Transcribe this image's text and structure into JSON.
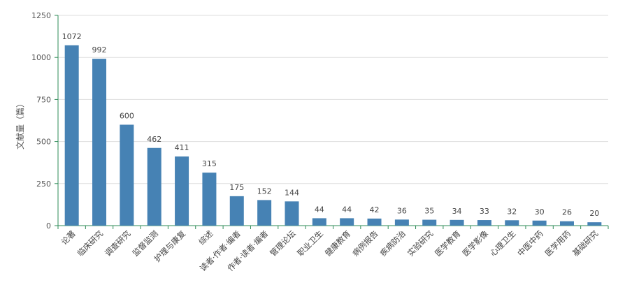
{
  "chart_data": {
    "type": "bar",
    "title": "",
    "xlabel": "",
    "ylabel": "文献量（篇）",
    "ylim": [
      0,
      1250
    ],
    "yticks": [
      0,
      250,
      500,
      750,
      1000,
      1250
    ],
    "grid": true,
    "legend": "none",
    "bar_color": "#4682b4",
    "categories": [
      "论著",
      "临床研究",
      "调查研究",
      "监督监测",
      "护理与康复",
      "综述",
      "读者·作者·编者",
      "作者·读者·编者",
      "管理论坛",
      "职业卫生",
      "健康教育",
      "病例报告",
      "疾病防治",
      "实验研究",
      "医学教育",
      "医学影像",
      "心理卫生",
      "中医中药",
      "医学用药",
      "基础研究"
    ],
    "values": [
      1072,
      992,
      600,
      462,
      411,
      315,
      175,
      152,
      144,
      44,
      44,
      42,
      36,
      35,
      34,
      33,
      32,
      30,
      26,
      20
    ]
  }
}
